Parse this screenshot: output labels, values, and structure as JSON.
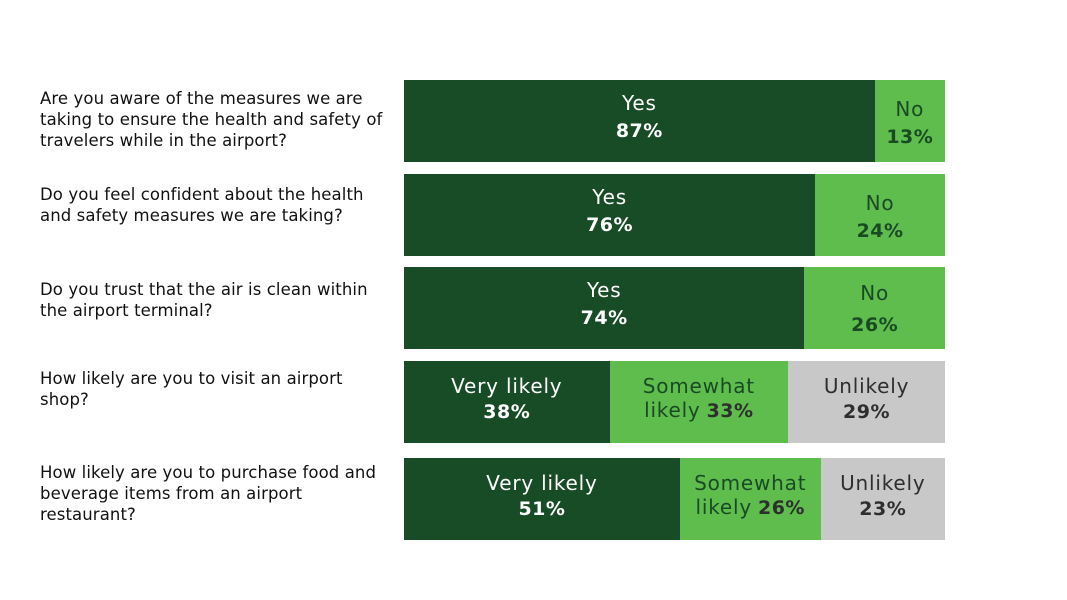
{
  "colors": {
    "dark_green": "#184c27",
    "light_green": "#5ebd4d",
    "gray": "#c8c8c8",
    "text_light": "#ffffff",
    "text_dark": "#2e2e2e",
    "text_nogreen": "#1a4a24"
  },
  "chart_data": {
    "type": "bar",
    "orientation": "horizontal",
    "stacked": true,
    "unit": "%",
    "xlim": [
      0,
      100
    ],
    "grid": false,
    "legend": "none",
    "rows": [
      {
        "question": "Are you aware of the measures we are taking to ensure the health and safety of travelers while in the airport?",
        "segments": [
          {
            "label": "Yes",
            "value": 87,
            "display": "87%"
          },
          {
            "label": "No",
            "value": 13,
            "display": "13%"
          }
        ]
      },
      {
        "question": "Do you feel confident about the health and safety measures we are taking?",
        "segments": [
          {
            "label": "Yes",
            "value": 76,
            "display": "76%"
          },
          {
            "label": "No",
            "value": 24,
            "display": "24%"
          }
        ]
      },
      {
        "question": "Do you trust that the air is clean within the airport terminal?",
        "segments": [
          {
            "label": "Yes",
            "value": 74,
            "display": "74%"
          },
          {
            "label": "No",
            "value": 26,
            "display": "26%"
          }
        ]
      },
      {
        "question": "How likely are you to visit an airport shop?",
        "segments": [
          {
            "label": "Very likely",
            "value": 38,
            "display": "38%"
          },
          {
            "label": "Somewhat likely",
            "value": 33,
            "display": "33%"
          },
          {
            "label": "Unlikely",
            "value": 29,
            "display": "29%"
          }
        ]
      },
      {
        "question": "How likely are you to purchase food and beverage items from an airport restaurant?",
        "segments": [
          {
            "label": "Very likely",
            "value": 51,
            "display": "51%"
          },
          {
            "label": "Somewhat likely",
            "value": 26,
            "display": "26%"
          },
          {
            "label": "Unlikely",
            "value": 23,
            "display": "23%"
          }
        ]
      }
    ]
  }
}
